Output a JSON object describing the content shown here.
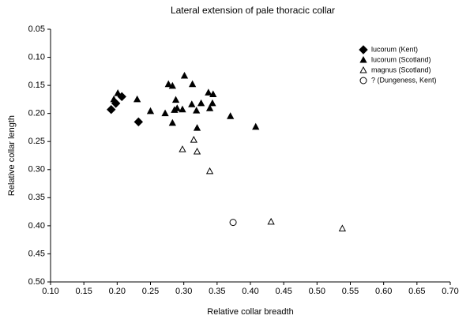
{
  "chart_data": {
    "type": "scatter",
    "title": "Lateral extension of pale thoracic collar",
    "x_label": "Relative collar breadth",
    "y_label": "Relative collar length",
    "xlim": [
      0.1,
      0.7
    ],
    "ylim": [
      0.05,
      0.5
    ],
    "y_inverted": true,
    "xticks": [
      {
        "value": 0.1,
        "label": "0.10"
      },
      {
        "value": 0.15,
        "label": "0.15"
      },
      {
        "value": 0.2,
        "label": "0.20"
      },
      {
        "value": 0.25,
        "label": "0.25"
      },
      {
        "value": 0.3,
        "label": "0.30"
      },
      {
        "value": 0.35,
        "label": "0.35"
      },
      {
        "value": 0.4,
        "label": "0.40"
      },
      {
        "value": 0.45,
        "label": "0.45"
      },
      {
        "value": 0.5,
        "label": "0.50"
      },
      {
        "value": 0.55,
        "label": "0.55"
      },
      {
        "value": 0.6,
        "label": "0.60"
      },
      {
        "value": 0.65,
        "label": "0.65"
      },
      {
        "value": 0.7,
        "label": "0.70"
      }
    ],
    "yticks": [
      {
        "value": 0.05,
        "label": "0.05"
      },
      {
        "value": 0.1,
        "label": "0.10"
      },
      {
        "value": 0.15,
        "label": "0.15"
      },
      {
        "value": 0.2,
        "label": "0.20"
      },
      {
        "value": 0.25,
        "label": "0.25"
      },
      {
        "value": 0.3,
        "label": "0.30"
      },
      {
        "value": 0.35,
        "label": "0.35"
      },
      {
        "value": 0.4,
        "label": "0.40"
      },
      {
        "value": 0.45,
        "label": "0.45"
      },
      {
        "value": 0.5,
        "label": "0.50"
      }
    ],
    "legend": "top-right",
    "series": [
      {
        "name": "lucorum (Kent)",
        "color": "#000000",
        "marker": "diamond",
        "filled": true,
        "x": [
          0.191,
          0.198,
          0.207,
          0.232
        ],
        "values": [
          0.193,
          0.182,
          0.17,
          0.215
        ]
      },
      {
        "name": "lucorum (Scotland)",
        "color": "#000000",
        "marker": "triangle",
        "filled": true,
        "x": [
          0.195,
          0.201,
          0.23,
          0.25,
          0.272,
          0.277,
          0.283,
          0.283,
          0.286,
          0.288,
          0.29,
          0.298,
          0.301,
          0.312,
          0.313,
          0.319,
          0.32,
          0.326,
          0.337,
          0.339,
          0.343,
          0.344,
          0.37,
          0.408
        ],
        "values": [
          0.175,
          0.164,
          0.175,
          0.196,
          0.2,
          0.148,
          0.151,
          0.217,
          0.194,
          0.176,
          0.191,
          0.193,
          0.133,
          0.184,
          0.148,
          0.195,
          0.226,
          0.182,
          0.163,
          0.191,
          0.182,
          0.166,
          0.205,
          0.224
        ]
      },
      {
        "name": "magnus (Scotland)",
        "color": "#000000",
        "marker": "triangle",
        "filled": false,
        "x": [
          0.298,
          0.315,
          0.32,
          0.339,
          0.431,
          0.538
        ],
        "values": [
          0.264,
          0.247,
          0.268,
          0.303,
          0.393,
          0.405
        ]
      },
      {
        "name": "? (Dungeness, Kent)",
        "color": "#000000",
        "marker": "circle",
        "filled": false,
        "x": [
          0.374
        ],
        "values": [
          0.394
        ]
      }
    ]
  }
}
